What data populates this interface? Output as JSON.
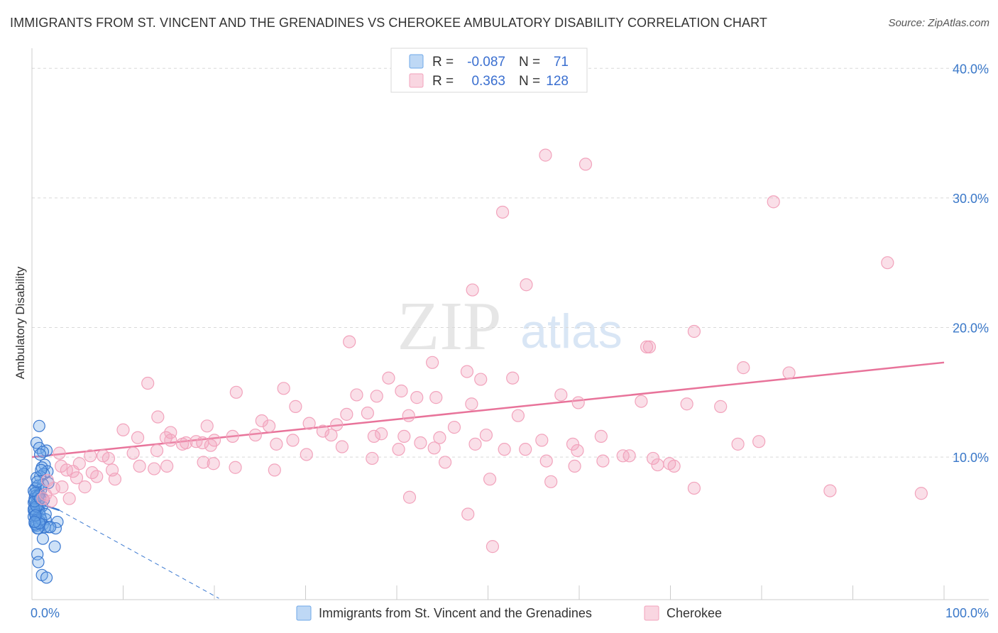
{
  "header": {
    "title": "IMMIGRANTS FROM ST. VINCENT AND THE GRENADINES VS CHEROKEE AMBULATORY DISABILITY CORRELATION CHART",
    "source": "Source: ZipAtlas.com"
  },
  "watermark": {
    "zip": "ZIP",
    "atlas": "atlas"
  },
  "colors": {
    "blue": "#6fa8e8",
    "blue_line": "#3a78d0",
    "pink": "#f2a3bc",
    "pink_line": "#e8739a",
    "tick_label": "#3a78c9"
  },
  "legend": {
    "rows": [
      {
        "r_label": "R =",
        "r_value": "-0.087",
        "n_label": "N =",
        "n_value": "71"
      },
      {
        "r_label": "R =",
        "r_value": "0.363",
        "n_label": "N =",
        "n_value": "128"
      }
    ]
  },
  "chart_data": {
    "type": "scatter",
    "title": "IMMIGRANTS FROM ST. VINCENT AND THE GRENADINES VS CHEROKEE AMBULATORY DISABILITY CORRELATION CHART",
    "xlabel": "",
    "ylabel": "Ambulatory Disability",
    "xlim": [
      0,
      100
    ],
    "ylim": [
      -1,
      41
    ],
    "x_tick_labels": [
      {
        "value": 0,
        "label": "0.0%"
      },
      {
        "value": 100,
        "label": "100.0%"
      }
    ],
    "y_tick_labels": [
      {
        "value": 10,
        "label": "10.0%"
      },
      {
        "value": 20,
        "label": "20.0%"
      },
      {
        "value": 30,
        "label": "30.0%"
      },
      {
        "value": 40,
        "label": "40.0%"
      }
    ],
    "grid": true,
    "legend_position": "top-center",
    "series": [
      {
        "name": "Immigrants from St. Vincent and the Grenadines",
        "color": "#6fa8e8",
        "points": [
          [
            0.8,
            12.4
          ],
          [
            0.5,
            11.1
          ],
          [
            0.8,
            10.7
          ],
          [
            1.6,
            10.5
          ],
          [
            1.2,
            10.4
          ],
          [
            0.9,
            10.2
          ],
          [
            1.4,
            9.4
          ],
          [
            1.1,
            9.2
          ],
          [
            1.7,
            8.9
          ],
          [
            1.3,
            8.7
          ],
          [
            0.9,
            8.5
          ],
          [
            0.5,
            8.4
          ],
          [
            1.8,
            8.0
          ],
          [
            1.2,
            7.9
          ],
          [
            0.7,
            7.8
          ],
          [
            0.4,
            7.6
          ],
          [
            1.0,
            7.5
          ],
          [
            0.5,
            7.3
          ],
          [
            0.3,
            7.2
          ],
          [
            0.8,
            7.1
          ],
          [
            0.4,
            7.0
          ],
          [
            0.6,
            6.9
          ],
          [
            0.3,
            6.8
          ],
          [
            1.3,
            6.7
          ],
          [
            0.6,
            6.6
          ],
          [
            0.2,
            6.5
          ],
          [
            0.9,
            6.4
          ],
          [
            0.4,
            6.3
          ],
          [
            1.1,
            6.2
          ],
          [
            0.3,
            6.1
          ],
          [
            0.7,
            6.0
          ],
          [
            0.2,
            5.9
          ],
          [
            0.8,
            5.8
          ],
          [
            0.3,
            5.7
          ],
          [
            0.5,
            5.6
          ],
          [
            0.9,
            5.5
          ],
          [
            0.2,
            5.4
          ],
          [
            0.6,
            5.3
          ],
          [
            1.5,
            5.2
          ],
          [
            0.4,
            5.1
          ],
          [
            2.8,
            5.0
          ],
          [
            0.9,
            5.0
          ],
          [
            0.3,
            4.9
          ],
          [
            1.2,
            4.8
          ],
          [
            0.5,
            4.7
          ],
          [
            1.8,
            4.6
          ],
          [
            0.7,
            4.5
          ],
          [
            1.4,
            4.6
          ],
          [
            2.6,
            4.5
          ],
          [
            0.6,
            4.5
          ],
          [
            0.4,
            4.8
          ],
          [
            1.0,
            5.2
          ],
          [
            0.2,
            6.0
          ],
          [
            0.5,
            6.2
          ],
          [
            0.3,
            6.6
          ],
          [
            0.7,
            7.0
          ],
          [
            0.2,
            7.4
          ],
          [
            0.8,
            4.9
          ],
          [
            1.5,
            5.6
          ],
          [
            0.4,
            5.5
          ],
          [
            0.9,
            6.8
          ],
          [
            2.0,
            4.6
          ],
          [
            1.2,
            3.7
          ],
          [
            2.5,
            3.1
          ],
          [
            0.6,
            2.5
          ],
          [
            0.7,
            1.9
          ],
          [
            1.1,
            0.9
          ],
          [
            1.6,
            0.7
          ],
          [
            0.3,
            5.0
          ],
          [
            0.6,
            8.1
          ],
          [
            1.0,
            9.0
          ]
        ],
        "trend": {
          "x1": 0,
          "y1": 6.6,
          "x2": 3.0,
          "y2": 5.9
        },
        "trend_extension": {
          "x1": 3.0,
          "y1": 5.9,
          "x2": 20.5,
          "y2": -0.9
        }
      },
      {
        "name": "Cherokee",
        "color": "#f2a3bc",
        "points": [
          [
            56.3,
            33.3
          ],
          [
            60.7,
            32.6
          ],
          [
            51.6,
            28.9
          ],
          [
            81.3,
            29.7
          ],
          [
            93.8,
            25.0
          ],
          [
            54.2,
            23.3
          ],
          [
            48.3,
            22.9
          ],
          [
            34.8,
            18.9
          ],
          [
            67.4,
            18.5
          ],
          [
            67.7,
            18.5
          ],
          [
            72.6,
            19.7
          ],
          [
            43.9,
            17.3
          ],
          [
            47.7,
            16.6
          ],
          [
            49.2,
            16.0
          ],
          [
            52.7,
            16.1
          ],
          [
            39.1,
            16.1
          ],
          [
            78.0,
            16.9
          ],
          [
            83.0,
            16.5
          ],
          [
            12.7,
            15.7
          ],
          [
            27.6,
            15.3
          ],
          [
            22.4,
            15.0
          ],
          [
            40.5,
            15.1
          ],
          [
            42.2,
            14.6
          ],
          [
            35.6,
            14.8
          ],
          [
            37.8,
            14.7
          ],
          [
            44.3,
            14.6
          ],
          [
            58.0,
            14.8
          ],
          [
            59.9,
            14.2
          ],
          [
            66.8,
            14.3
          ],
          [
            71.8,
            14.1
          ],
          [
            75.5,
            13.9
          ],
          [
            48.2,
            14.1
          ],
          [
            53.3,
            13.2
          ],
          [
            28.9,
            13.9
          ],
          [
            25.2,
            12.8
          ],
          [
            34.5,
            13.3
          ],
          [
            36.8,
            13.4
          ],
          [
            41.3,
            13.2
          ],
          [
            30.4,
            12.6
          ],
          [
            13.8,
            13.1
          ],
          [
            19.2,
            12.4
          ],
          [
            26.0,
            12.4
          ],
          [
            31.9,
            12.0
          ],
          [
            33.4,
            12.5
          ],
          [
            38.3,
            11.8
          ],
          [
            46.3,
            12.3
          ],
          [
            10.0,
            12.1
          ],
          [
            15.2,
            11.9
          ],
          [
            11.6,
            11.5
          ],
          [
            14.7,
            11.5
          ],
          [
            16.5,
            11.0
          ],
          [
            18.0,
            11.2
          ],
          [
            19.6,
            10.9
          ],
          [
            22.0,
            11.6
          ],
          [
            24.5,
            11.7
          ],
          [
            28.6,
            11.3
          ],
          [
            32.8,
            11.7
          ],
          [
            37.5,
            11.6
          ],
          [
            40.8,
            11.6
          ],
          [
            42.6,
            11.1
          ],
          [
            44.7,
            11.5
          ],
          [
            48.6,
            11.0
          ],
          [
            49.8,
            11.7
          ],
          [
            55.9,
            11.3
          ],
          [
            59.3,
            11.0
          ],
          [
            59.8,
            10.5
          ],
          [
            62.4,
            11.6
          ],
          [
            65.5,
            10.1
          ],
          [
            77.4,
            11.0
          ],
          [
            79.7,
            11.2
          ],
          [
            6.4,
            10.1
          ],
          [
            7.8,
            10.1
          ],
          [
            8.4,
            9.9
          ],
          [
            11.1,
            10.3
          ],
          [
            13.7,
            10.5
          ],
          [
            15.2,
            11.3
          ],
          [
            16.9,
            11.1
          ],
          [
            18.7,
            11.1
          ],
          [
            20.0,
            11.3
          ],
          [
            26.8,
            11.0
          ],
          [
            30.1,
            10.2
          ],
          [
            34.0,
            10.8
          ],
          [
            37.3,
            9.9
          ],
          [
            40.2,
            10.6
          ],
          [
            44.1,
            10.7
          ],
          [
            45.3,
            9.6
          ],
          [
            51.8,
            10.6
          ],
          [
            54.1,
            10.6
          ],
          [
            62.6,
            9.7
          ],
          [
            64.8,
            10.1
          ],
          [
            68.1,
            9.9
          ],
          [
            68.6,
            9.4
          ],
          [
            3.2,
            9.3
          ],
          [
            3.8,
            9.0
          ],
          [
            4.5,
            8.9
          ],
          [
            5.2,
            9.5
          ],
          [
            6.6,
            8.8
          ],
          [
            7.1,
            8.5
          ],
          [
            8.8,
            9.0
          ],
          [
            9.1,
            8.3
          ],
          [
            11.8,
            9.3
          ],
          [
            13.4,
            9.1
          ],
          [
            14.8,
            9.3
          ],
          [
            18.8,
            9.6
          ],
          [
            19.9,
            9.5
          ],
          [
            22.3,
            9.2
          ],
          [
            26.6,
            9.0
          ],
          [
            56.4,
            9.7
          ],
          [
            59.5,
            9.3
          ],
          [
            69.9,
            9.5
          ],
          [
            70.4,
            9.3
          ],
          [
            3.0,
            10.3
          ],
          [
            4.9,
            8.4
          ],
          [
            5.8,
            7.7
          ],
          [
            3.3,
            7.7
          ],
          [
            2.4,
            7.6
          ],
          [
            1.7,
            8.2
          ],
          [
            2.1,
            6.6
          ],
          [
            1.5,
            7.1
          ],
          [
            1.2,
            6.8
          ],
          [
            4.1,
            6.8
          ],
          [
            50.2,
            8.3
          ],
          [
            41.4,
            6.9
          ],
          [
            47.8,
            5.6
          ],
          [
            72.6,
            7.6
          ],
          [
            87.5,
            7.4
          ],
          [
            97.5,
            7.2
          ],
          [
            50.5,
            3.1
          ],
          [
            56.9,
            8.1
          ]
        ],
        "trend": {
          "x1": 0,
          "y1": 10.0,
          "x2": 100,
          "y2": 17.3
        }
      }
    ]
  }
}
